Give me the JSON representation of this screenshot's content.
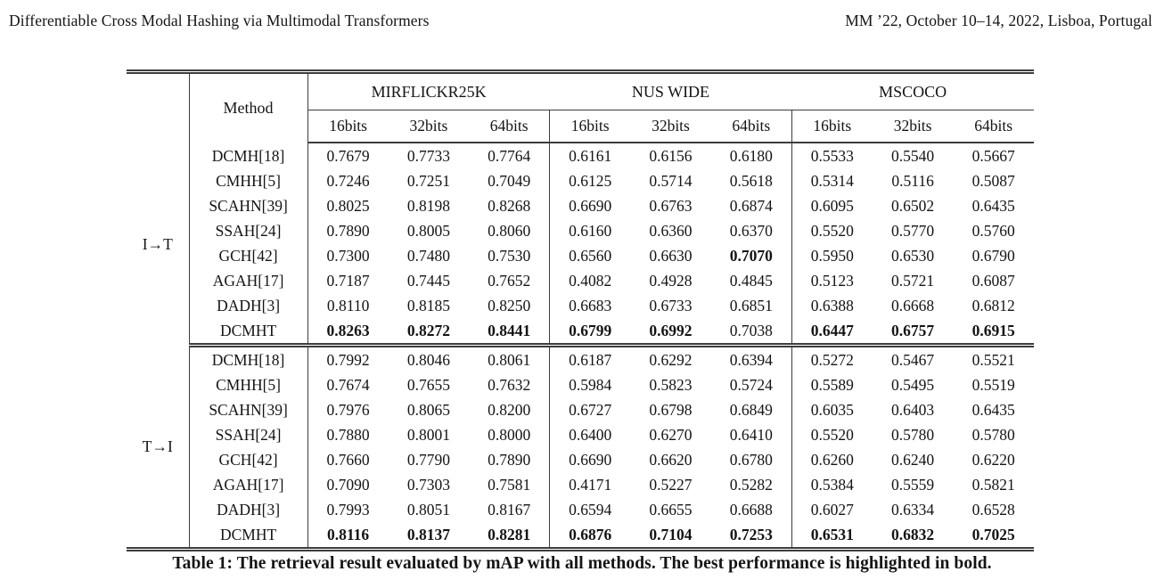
{
  "page_header": {
    "left": "Differentiable Cross Modal Hashing via Multimodal Transformers",
    "right": "MM ’22, October 10–14, 2022, Lisboa, Portugal"
  },
  "table": {
    "method_header": "Method",
    "datasets": [
      "MIRFLICKR25K",
      "NUS WIDE",
      "MSCOCO"
    ],
    "bits": [
      "16bits",
      "32bits",
      "64bits"
    ],
    "sections": [
      {
        "label": "I→T",
        "rows": [
          {
            "method": "DCMH[18]",
            "values": [
              "0.7679",
              "0.7733",
              "0.7764",
              "0.6161",
              "0.6156",
              "0.6180",
              "0.5533",
              "0.5540",
              "0.5667"
            ],
            "bold_indices": []
          },
          {
            "method": "CMHH[5]",
            "values": [
              "0.7246",
              "0.7251",
              "0.7049",
              "0.6125",
              "0.5714",
              "0.5618",
              "0.5314",
              "0.5116",
              "0.5087"
            ],
            "bold_indices": []
          },
          {
            "method": "SCAHN[39]",
            "values": [
              "0.8025",
              "0.8198",
              "0.8268",
              "0.6690",
              "0.6763",
              "0.6874",
              "0.6095",
              "0.6502",
              "0.6435"
            ],
            "bold_indices": []
          },
          {
            "method": "SSAH[24]",
            "values": [
              "0.7890",
              "0.8005",
              "0.8060",
              "0.6160",
              "0.6360",
              "0.6370",
              "0.5520",
              "0.5770",
              "0.5760"
            ],
            "bold_indices": []
          },
          {
            "method": "GCH[42]",
            "values": [
              "0.7300",
              "0.7480",
              "0.7530",
              "0.6560",
              "0.6630",
              "0.7070",
              "0.5950",
              "0.6530",
              "0.6790"
            ],
            "bold_indices": [
              5
            ]
          },
          {
            "method": "AGAH[17]",
            "values": [
              "0.7187",
              "0.7445",
              "0.7652",
              "0.4082",
              "0.4928",
              "0.4845",
              "0.5123",
              "0.5721",
              "0.6087"
            ],
            "bold_indices": []
          },
          {
            "method": "DADH[3]",
            "values": [
              "0.8110",
              "0.8185",
              "0.8250",
              "0.6683",
              "0.6733",
              "0.6851",
              "0.6388",
              "0.6668",
              "0.6812"
            ],
            "bold_indices": []
          },
          {
            "method": "DCMHT",
            "values": [
              "0.8263",
              "0.8272",
              "0.8441",
              "0.6799",
              "0.6992",
              "0.7038",
              "0.6447",
              "0.6757",
              "0.6915"
            ],
            "bold_indices": [
              0,
              1,
              2,
              3,
              4,
              6,
              7,
              8
            ]
          }
        ]
      },
      {
        "label": "T→I",
        "rows": [
          {
            "method": "DCMH[18]",
            "values": [
              "0.7992",
              "0.8046",
              "0.8061",
              "0.6187",
              "0.6292",
              "0.6394",
              "0.5272",
              "0.5467",
              "0.5521"
            ],
            "bold_indices": []
          },
          {
            "method": "CMHH[5]",
            "values": [
              "0.7674",
              "0.7655",
              "0.7632",
              "0.5984",
              "0.5823",
              "0.5724",
              "0.5589",
              "0.5495",
              "0.5519"
            ],
            "bold_indices": []
          },
          {
            "method": "SCAHN[39]",
            "values": [
              "0.7976",
              "0.8065",
              "0.8200",
              "0.6727",
              "0.6798",
              "0.6849",
              "0.6035",
              "0.6403",
              "0.6435"
            ],
            "bold_indices": []
          },
          {
            "method": "SSAH[24]",
            "values": [
              "0.7880",
              "0.8001",
              "0.8000",
              "0.6400",
              "0.6270",
              "0.6410",
              "0.5520",
              "0.5780",
              "0.5780"
            ],
            "bold_indices": []
          },
          {
            "method": "GCH[42]",
            "values": [
              "0.7660",
              "0.7790",
              "0.7890",
              "0.6690",
              "0.6620",
              "0.6780",
              "0.6260",
              "0.6240",
              "0.6220"
            ],
            "bold_indices": []
          },
          {
            "method": "AGAH[17]",
            "values": [
              "0.7090",
              "0.7303",
              "0.7581",
              "0.4171",
              "0.5227",
              "0.5282",
              "0.5384",
              "0.5559",
              "0.5821"
            ],
            "bold_indices": []
          },
          {
            "method": "DADH[3]",
            "values": [
              "0.7993",
              "0.8051",
              "0.8167",
              "0.6594",
              "0.6655",
              "0.6688",
              "0.6027",
              "0.6334",
              "0.6528"
            ],
            "bold_indices": []
          },
          {
            "method": "DCMHT",
            "values": [
              "0.8116",
              "0.8137",
              "0.8281",
              "0.6876",
              "0.7104",
              "0.7253",
              "0.6531",
              "0.6832",
              "0.7025"
            ],
            "bold_indices": [
              0,
              1,
              2,
              3,
              4,
              5,
              6,
              7,
              8
            ]
          }
        ]
      }
    ]
  },
  "caption": "Table 1: The retrieval result evaluated by mAP with all methods. The best performance is highlighted in bold."
}
